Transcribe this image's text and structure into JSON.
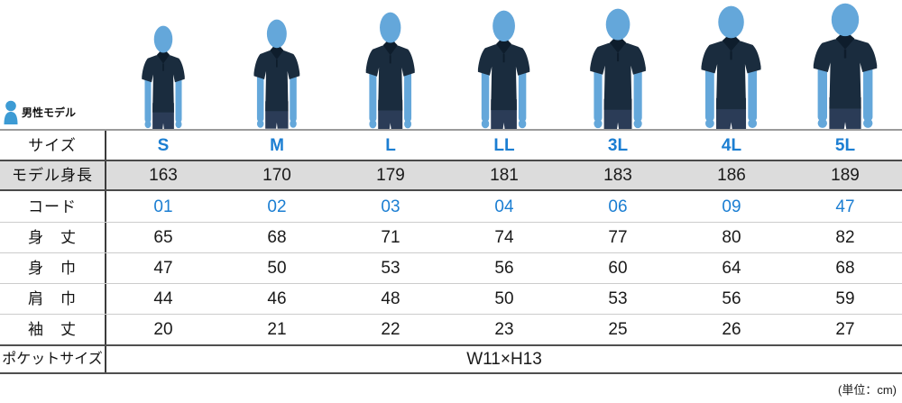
{
  "header": {
    "model_type_label": "男性モデル"
  },
  "footer": {
    "unit_note": "(単位：cm)"
  },
  "colors": {
    "accent_blue": "#1b7ed2",
    "text_black": "#1a1a1a",
    "band_gray": "#dcdcdc",
    "figure_skin_blue": "#64a7da",
    "icon_blue": "#3d9bd4",
    "shirt_navy": "#1a2c3e",
    "collar_navy": "#0e1d2c",
    "jeans_blue": "#2b3c57"
  },
  "chart_data": {
    "type": "table",
    "unit": "cm",
    "columns": [
      "S",
      "M",
      "L",
      "LL",
      "3L",
      "4L",
      "5L"
    ],
    "rows": [
      {
        "label": "サイズ",
        "variant": "size",
        "values": [
          "S",
          "M",
          "L",
          "LL",
          "3L",
          "4L",
          "5L"
        ]
      },
      {
        "label": "モデル身長",
        "variant": "model-height",
        "values": [
          "163",
          "170",
          "179",
          "181",
          "183",
          "186",
          "189"
        ]
      },
      {
        "label": "コード",
        "variant": "code",
        "values": [
          "01",
          "02",
          "03",
          "04",
          "06",
          "09",
          "47"
        ]
      },
      {
        "label": "身　丈",
        "variant": "measure",
        "values": [
          "65",
          "68",
          "71",
          "74",
          "77",
          "80",
          "82"
        ]
      },
      {
        "label": "身　巾",
        "variant": "measure",
        "values": [
          "47",
          "50",
          "53",
          "56",
          "60",
          "64",
          "68"
        ]
      },
      {
        "label": "肩　巾",
        "variant": "measure",
        "values": [
          "44",
          "46",
          "48",
          "50",
          "53",
          "56",
          "59"
        ]
      },
      {
        "label": "袖　丈",
        "variant": "measure",
        "values": [
          "20",
          "21",
          "22",
          "23",
          "25",
          "26",
          "27"
        ]
      },
      {
        "label": "ポケットサイズ",
        "variant": "pocket",
        "span_value": "W11×H13"
      }
    ]
  }
}
